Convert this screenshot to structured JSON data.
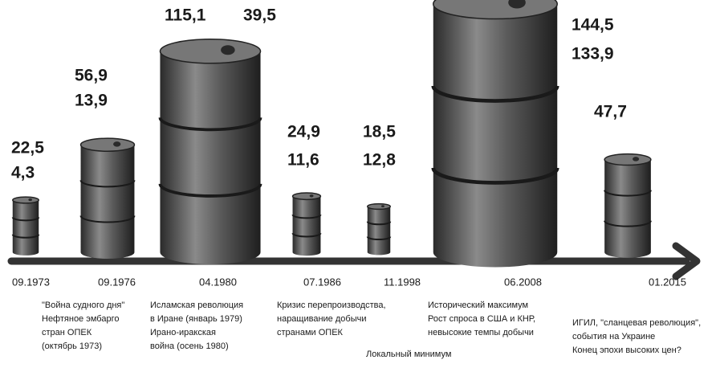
{
  "chart_data": {
    "type": "barrel",
    "categories": [
      "09.1973",
      "09.1976",
      "04.1980",
      "07.1986",
      "11.1998",
      "06.2008",
      "01.2015"
    ],
    "series": [
      {
        "color": "#4a4a4a",
        "values": [
          22.5,
          56.9,
          115.1,
          24.9,
          18.5,
          144.5,
          47.7
        ],
        "value_labels": [
          "22,5",
          "56,9",
          "115,1",
          "24,9",
          "18,5",
          "144,5",
          "47,7"
        ]
      },
      {
        "color": "#4a4a4a",
        "values": [
          4.3,
          13.9,
          39.5,
          11.6,
          12.8,
          133.9,
          null
        ],
        "value_labels": [
          "4,3",
          "13,9",
          "39,5",
          "11,6",
          "12,8",
          "133,9",
          null
        ]
      }
    ],
    "notes": [
      [
        "\"Война судного дня\"",
        "Нефтяное эмбарго",
        "стран ОПЕК",
        "(октябрь 1973)"
      ],
      [
        "Исламская революция",
        "в Иране (январь 1979)",
        "Ирано-иракская",
        "война (осень 1980)"
      ],
      [
        "Кризис перепроизводства,",
        "наращивание добычи",
        "странами ОПЕК"
      ],
      [
        "Локальный минимум"
      ],
      [
        "Исторический максимум",
        "Рост спроса в США и КНР,",
        "невысокие темпы добычи"
      ],
      [
        "ИГИЛ, \"сланцевая революция\",",
        "события на Украине",
        "Конец эпохи высоких цен?"
      ]
    ]
  }
}
